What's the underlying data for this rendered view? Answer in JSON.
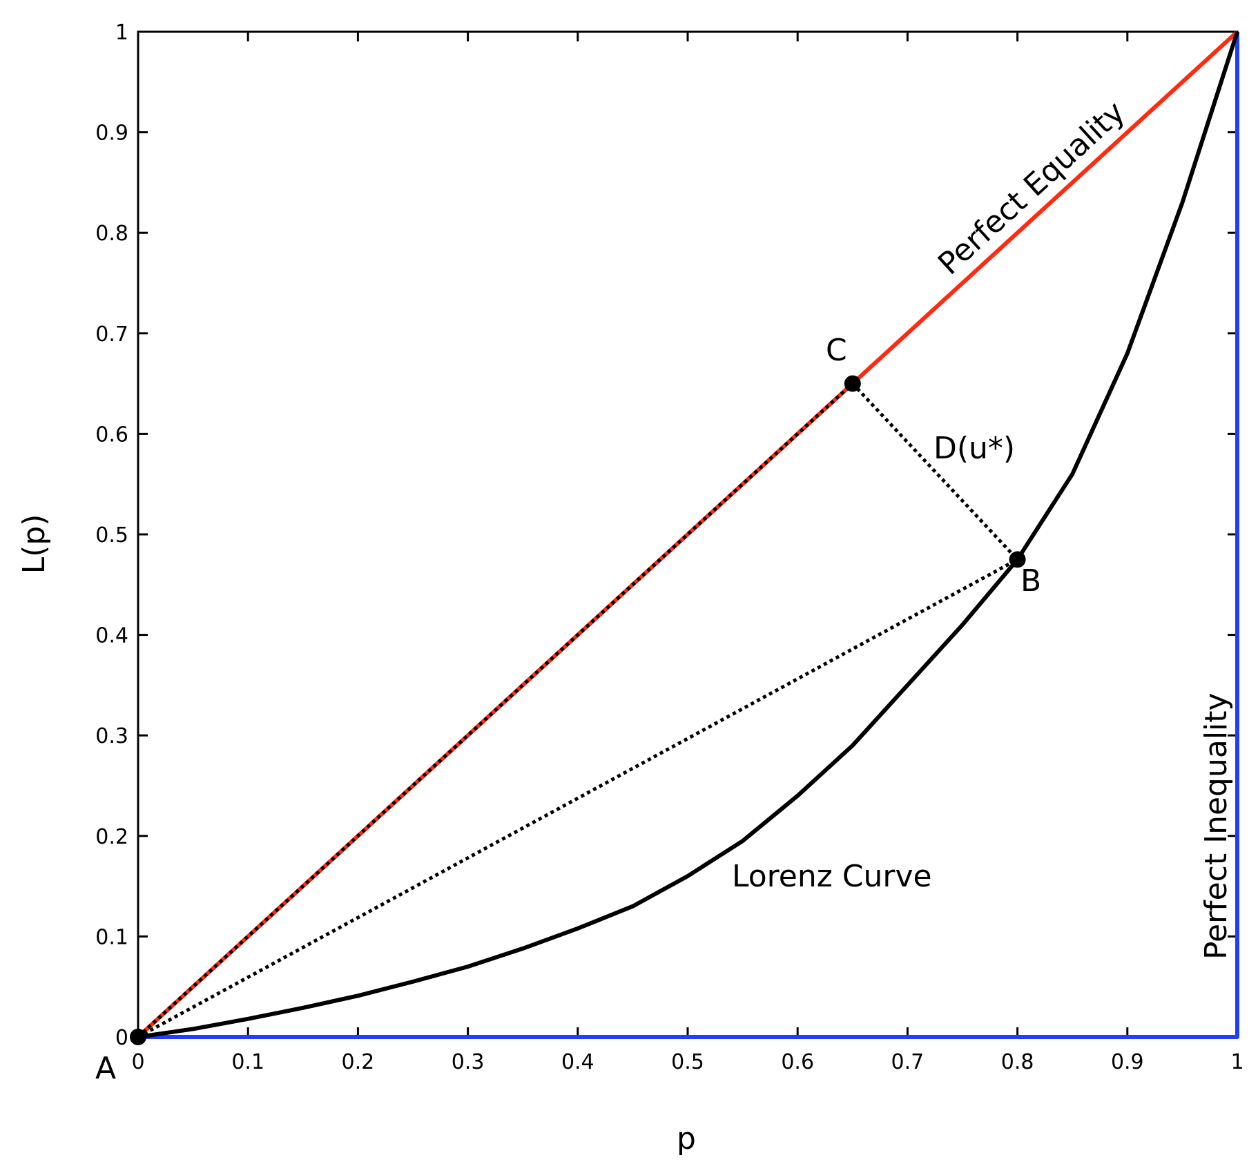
{
  "chart_data": {
    "type": "line",
    "title": "",
    "xlabel": "p",
    "ylabel": "L(p)",
    "xlim": [
      0,
      1
    ],
    "ylim": [
      0,
      1
    ],
    "grid": false,
    "x_ticks": [
      "0",
      "0.1",
      "0.2",
      "0.3",
      "0.4",
      "0.5",
      "0.6",
      "0.7",
      "0.8",
      "0.9",
      "1"
    ],
    "y_ticks": [
      "0",
      "0.1",
      "0.2",
      "0.3",
      "0.4",
      "0.5",
      "0.6",
      "0.7",
      "0.8",
      "0.9",
      "1"
    ],
    "series": [
      {
        "name": "Lorenz Curve",
        "color": "#000000",
        "style": "solid",
        "x": [
          0,
          0.05,
          0.1,
          0.15,
          0.2,
          0.25,
          0.3,
          0.35,
          0.4,
          0.45,
          0.5,
          0.55,
          0.6,
          0.65,
          0.7,
          0.75,
          0.8,
          0.85,
          0.9,
          0.95,
          1
        ],
        "y": [
          0,
          0.008,
          0.018,
          0.029,
          0.041,
          0.055,
          0.07,
          0.088,
          0.108,
          0.13,
          0.16,
          0.195,
          0.24,
          0.29,
          0.35,
          0.41,
          0.475,
          0.56,
          0.68,
          0.83,
          1
        ]
      },
      {
        "name": "Perfect Equality",
        "color": "#ff2a10",
        "style": "solid",
        "x": [
          0,
          1
        ],
        "y": [
          0,
          1
        ]
      },
      {
        "name": "Perfect Inequality",
        "color": "#1f3fff",
        "style": "solid",
        "x": [
          0,
          1,
          1
        ],
        "y": [
          0,
          0,
          1
        ]
      }
    ],
    "dotted_segments": [
      {
        "from": [
          0,
          0
        ],
        "to": [
          0.65,
          0.65
        ]
      },
      {
        "from": [
          0,
          0
        ],
        "to": [
          0.8,
          0.475
        ]
      },
      {
        "from": [
          0.65,
          0.65
        ],
        "to": [
          0.8,
          0.475
        ]
      }
    ],
    "points": [
      {
        "label": "A",
        "x": 0,
        "y": 0
      },
      {
        "label": "C",
        "x": 0.65,
        "y": 0.65
      },
      {
        "label": "B",
        "x": 0.8,
        "y": 0.475
      }
    ],
    "annotations": [
      {
        "text": "Perfect Equality",
        "target": "diagonal"
      },
      {
        "text": "D(u*)",
        "target": "segment-CB"
      },
      {
        "text": "Lorenz Curve",
        "target": "curve"
      },
      {
        "text": "Perfect Inequality",
        "target": "right-edge"
      }
    ]
  }
}
